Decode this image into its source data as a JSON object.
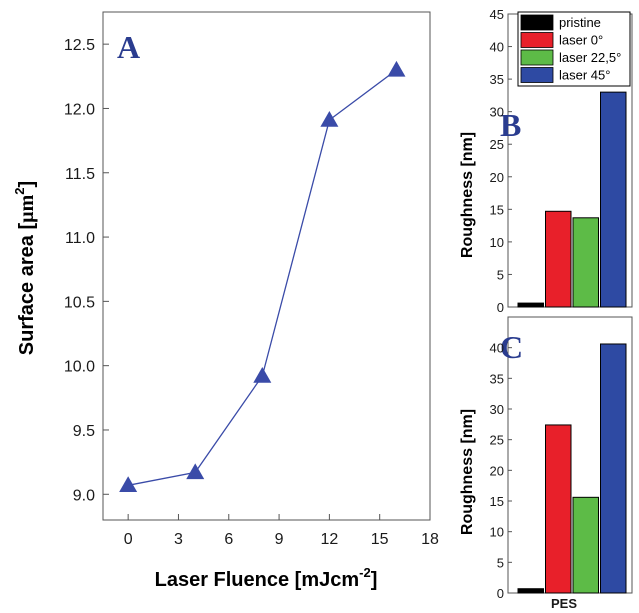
{
  "chart_data": [
    {
      "panel": "A",
      "type": "line",
      "xlabel": "Laser Fluence [mJcm",
      "xlabel_sup": "-2",
      "xlabel_end": "]",
      "ylabel": "Surface area [",
      "ylabel_unit": "µm",
      "ylabel_sup": "2",
      "ylabel_end": "]",
      "xlim": [
        -1.5,
        18
      ],
      "ylim": [
        8.8,
        12.75
      ],
      "xticks": [
        0,
        3,
        6,
        9,
        12,
        15,
        18
      ],
      "yticks": [
        9.0,
        9.5,
        10.0,
        10.5,
        11.0,
        11.5,
        12.0,
        12.5
      ],
      "ytick_labels": [
        "9.0",
        "9.5",
        "10.0",
        "10.5",
        "11.0",
        "11.5",
        "12.0",
        "12.5"
      ],
      "x": [
        0,
        4,
        8,
        12,
        16
      ],
      "y": [
        9.07,
        9.17,
        9.92,
        11.91,
        12.3
      ],
      "color": "#3a4ba8",
      "marker": "triangle"
    },
    {
      "panel": "B",
      "type": "bar",
      "ylabel": "Roughness [nm]",
      "ylim": [
        0,
        45
      ],
      "yticks": [
        0,
        5,
        10,
        15,
        20,
        25,
        30,
        35,
        40,
        45
      ],
      "series": [
        {
          "name": "pristine",
          "value": 0.6,
          "color": "#000000"
        },
        {
          "name": "laser 0°",
          "value": 14.7,
          "color": "#e8202a"
        },
        {
          "name": "laser 22,5°",
          "value": 13.7,
          "color": "#5dbb47"
        },
        {
          "name": "laser 45°",
          "value": 33.0,
          "color": "#2e4aa3"
        }
      ],
      "legend_position": "top"
    },
    {
      "panel": "C",
      "type": "bar",
      "ylabel": "Roughness [nm]",
      "ylim": [
        0,
        45
      ],
      "yticks": [
        0,
        5,
        10,
        15,
        20,
        25,
        30,
        35,
        40
      ],
      "xtick_label": "PES",
      "series": [
        {
          "name": "pristine",
          "value": 0.7,
          "color": "#000000"
        },
        {
          "name": "laser 0°",
          "value": 27.4,
          "color": "#e8202a"
        },
        {
          "name": "laser 22,5°",
          "value": 15.6,
          "color": "#5dbb47"
        },
        {
          "name": "laser 45°",
          "value": 40.6,
          "color": "#2e4aa3"
        }
      ]
    }
  ]
}
